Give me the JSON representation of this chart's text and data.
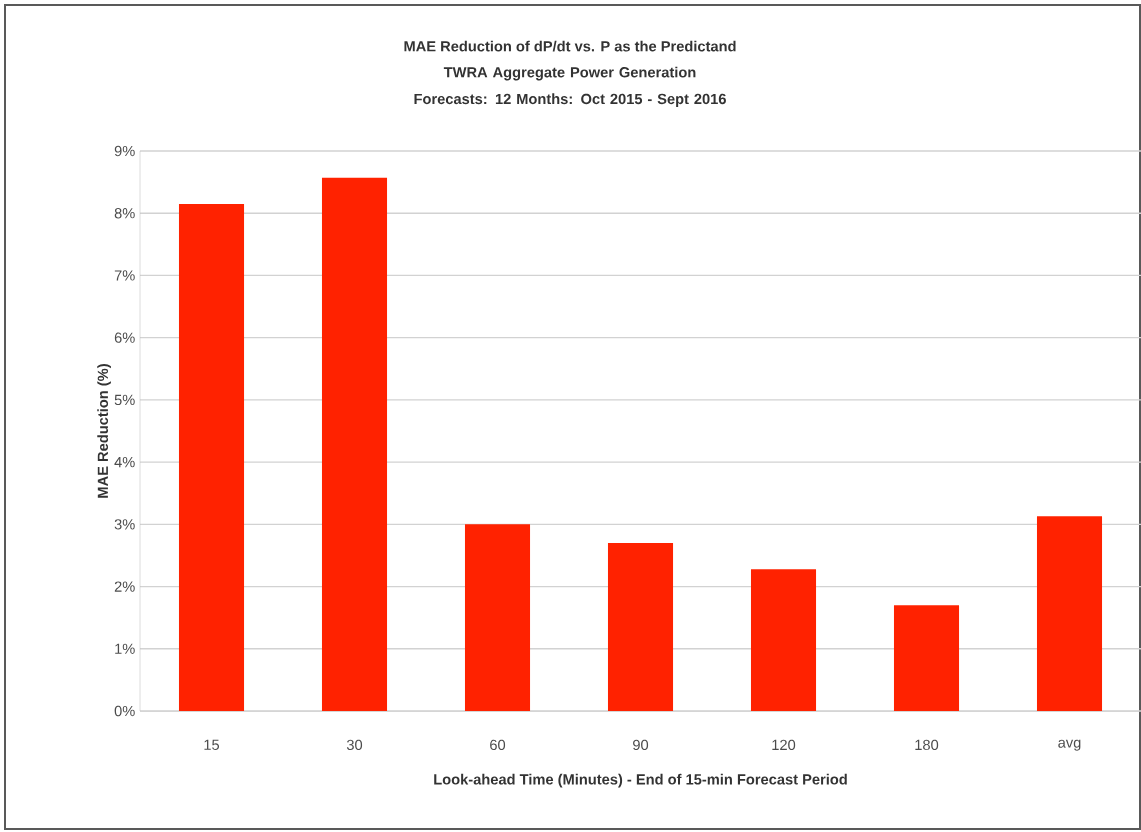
{
  "chart_data": {
    "type": "bar",
    "title": "MAE Reduction of dP/dt vs. P as the Predictand",
    "subtitle": "TWRA Aggregate Power Generation Forecasts: 12 Months: Oct 2015 - Sept 2016",
    "xlabel": "Look-ahead Time (Minutes) - End of 15-min Forecast Period",
    "ylabel": "MAE Reduction (%)",
    "categories": [
      "15",
      "30",
      "60",
      "90",
      "120",
      "180",
      "avg"
    ],
    "values": [
      8.15,
      8.57,
      3.0,
      2.7,
      2.28,
      1.7,
      3.13
    ],
    "color": "#ff2200",
    "ylim": [
      0,
      9
    ],
    "yticks": [
      {
        "value": 0,
        "label": "0%"
      },
      {
        "value": 1,
        "label": "1%"
      },
      {
        "value": 2,
        "label": "2%"
      },
      {
        "value": 3,
        "label": "3%"
      },
      {
        "value": 4,
        "label": "4%"
      },
      {
        "value": 5,
        "label": "5%"
      },
      {
        "value": 6,
        "label": "6%"
      },
      {
        "value": 7,
        "label": "7%"
      },
      {
        "value": 8,
        "label": "8%"
      },
      {
        "value": 9,
        "label": "9%"
      }
    ],
    "grid": "y"
  }
}
